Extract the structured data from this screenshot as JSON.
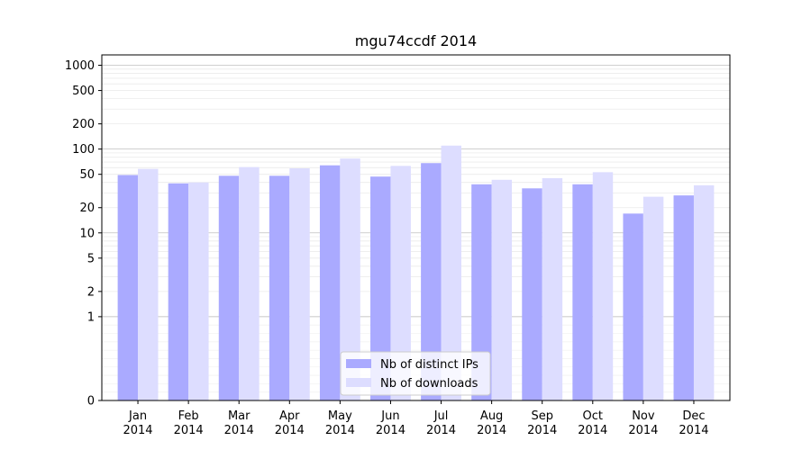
{
  "chart_data": {
    "type": "bar",
    "title": "mgu74ccdf 2014",
    "xlabel": "",
    "ylabel": "",
    "y_scale": "symlog",
    "y_ticks": [
      0,
      1,
      2,
      5,
      10,
      20,
      50,
      100,
      200,
      500,
      1000
    ],
    "y_tick_labels": [
      "0",
      "1",
      "2",
      "5",
      "10",
      "20",
      "50",
      "100",
      "200",
      "500",
      "1000"
    ],
    "categories": [
      "Jan\n2014",
      "Feb\n2014",
      "Mar\n2014",
      "Apr\n2014",
      "May\n2014",
      "Jun\n2014",
      "Jul\n2014",
      "Aug\n2014",
      "Sep\n2014",
      "Oct\n2014",
      "Nov\n2014",
      "Dec\n2014"
    ],
    "series": [
      {
        "name": "Nb of distinct IPs",
        "color": "#aaaaff",
        "values": [
          49,
          39,
          48,
          48,
          64,
          47,
          68,
          38,
          34,
          38,
          17,
          28
        ]
      },
      {
        "name": "Nb of downloads",
        "color": "#ddddff",
        "values": [
          58,
          40,
          61,
          59,
          77,
          63,
          110,
          43,
          45,
          53,
          27,
          37
        ]
      }
    ],
    "legend_position": "lower-center",
    "grid": true
  }
}
